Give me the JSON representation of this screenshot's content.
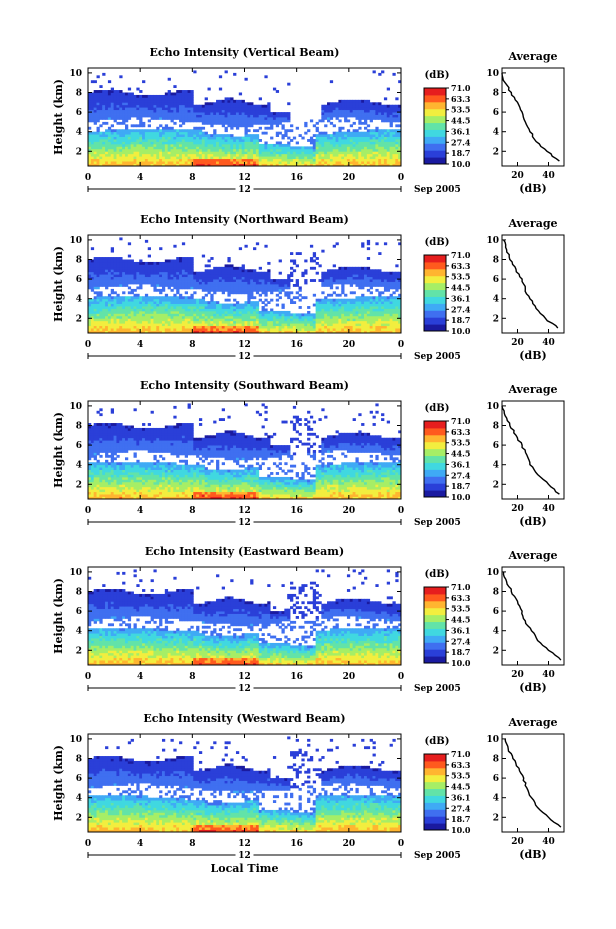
{
  "colorbar": {
    "unit": "(dB)",
    "ticks": [
      "71.0",
      "63.3",
      "53.5",
      "44.5",
      "36.1",
      "27.4",
      "18.7",
      "10.0"
    ],
    "colors": [
      "#1a1aa0",
      "#2a3fd8",
      "#3f6ff0",
      "#3faaf5",
      "#40d8e0",
      "#62e3a8",
      "#a6ee66",
      "#f2ee3f",
      "#ffb530",
      "#ff5a1e",
      "#e61e1e"
    ]
  },
  "shared": {
    "ylabel": "Height (km)",
    "yticks": [
      "2",
      "4",
      "6",
      "8",
      "10"
    ],
    "xticks": [
      "0",
      "4",
      "8",
      "12",
      "16",
      "20",
      "0"
    ],
    "day_label": "12",
    "month_label": "Sep 2005",
    "xlabel_bottom": "Local Time",
    "avg_title": "Average",
    "avg_xlabel": "(dB)",
    "avg_xticks": [
      "20",
      "40"
    ],
    "avg_yticks": [
      "2",
      "4",
      "6",
      "8",
      "10"
    ]
  },
  "panels": [
    {
      "title": "Echo Intensity (Vertical Beam)"
    },
    {
      "title": "Echo Intensity (Northward Beam)"
    },
    {
      "title": "Echo Intensity (Southward Beam)"
    },
    {
      "title": "Echo Intensity (Eastward Beam)"
    },
    {
      "title": "Echo Intensity (Westward Beam)"
    }
  ],
  "chart_data": [
    {
      "type": "heatmap",
      "title": "Echo Intensity (Vertical Beam)",
      "xlabel": "",
      "ylabel": "Height (km)",
      "xlim": [
        0,
        24
      ],
      "ylim": [
        0.5,
        10.5
      ],
      "zlim": [
        10.0,
        71.0
      ],
      "average_profile": {
        "title": "Average",
        "xlabel": "(dB)",
        "xlim": [
          10,
          50
        ],
        "ylim": [
          0.5,
          10.5
        ],
        "height": [
          10,
          9,
          8,
          7,
          6,
          5,
          4,
          3,
          2,
          1
        ],
        "value": [
          10,
          12,
          16,
          20,
          23,
          25,
          28,
          32,
          39,
          47
        ]
      }
    },
    {
      "type": "heatmap",
      "title": "Echo Intensity (Northward Beam)",
      "xlabel": "",
      "ylabel": "Height (km)",
      "xlim": [
        0,
        24
      ],
      "ylim": [
        0.5,
        10.5
      ],
      "zlim": [
        10.0,
        71.0
      ],
      "average_profile": {
        "title": "Average",
        "xlabel": "(dB)",
        "xlim": [
          10,
          50
        ],
        "ylim": [
          0.5,
          10.5
        ],
        "height": [
          10,
          9,
          8,
          7,
          6,
          5,
          4,
          3,
          2,
          1
        ],
        "value": [
          11,
          13,
          15,
          19,
          23,
          25,
          28,
          32,
          38,
          46
        ]
      }
    },
    {
      "type": "heatmap",
      "title": "Echo Intensity (Southward Beam)",
      "xlabel": "",
      "ylabel": "Height (km)",
      "xlim": [
        0,
        24
      ],
      "ylim": [
        0.5,
        10.5
      ],
      "zlim": [
        10.0,
        71.0
      ],
      "average_profile": {
        "title": "Average",
        "xlabel": "(dB)",
        "xlim": [
          10,
          50
        ],
        "ylim": [
          0.5,
          10.5
        ],
        "height": [
          10,
          9,
          8,
          7,
          6,
          5,
          4,
          3,
          2,
          1
        ],
        "value": [
          10,
          12,
          15,
          19,
          23,
          26,
          28,
          33,
          40,
          47
        ]
      }
    },
    {
      "type": "heatmap",
      "title": "Echo Intensity (Eastward Beam)",
      "xlabel": "",
      "ylabel": "Height (km)",
      "xlim": [
        0,
        24
      ],
      "ylim": [
        0.5,
        10.5
      ],
      "zlim": [
        10.0,
        71.0
      ],
      "average_profile": {
        "title": "Average",
        "xlabel": "(dB)",
        "xlim": [
          10,
          50
        ],
        "ylim": [
          0.5,
          10.5
        ],
        "height": [
          10,
          9,
          8,
          7,
          6,
          5,
          4,
          3,
          2,
          1
        ],
        "value": [
          11,
          13,
          16,
          20,
          23,
          25,
          29,
          33,
          40,
          48
        ]
      }
    },
    {
      "type": "heatmap",
      "title": "Echo Intensity (Westward Beam)",
      "xlabel": "Local Time",
      "ylabel": "Height (km)",
      "xlim": [
        0,
        24
      ],
      "ylim": [
        0.5,
        10.5
      ],
      "zlim": [
        10.0,
        71.0
      ],
      "average_profile": {
        "title": "Average",
        "xlabel": "(dB)",
        "xlim": [
          10,
          50
        ],
        "ylim": [
          0.5,
          10.5
        ],
        "height": [
          10,
          9,
          8,
          7,
          6,
          5,
          4,
          3,
          2,
          1
        ],
        "value": [
          12,
          14,
          17,
          21,
          24,
          26,
          29,
          33,
          40,
          48
        ]
      }
    }
  ]
}
